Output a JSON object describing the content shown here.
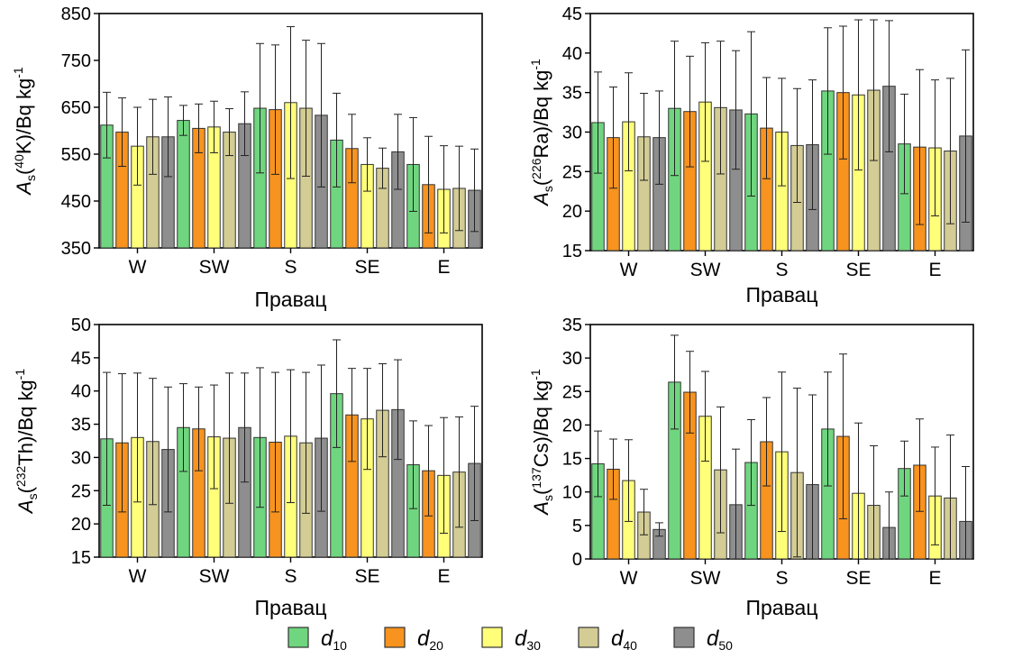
{
  "legend": {
    "items": [
      {
        "symbol": "d",
        "sub": "10",
        "color": "#6fd67f"
      },
      {
        "symbol": "d",
        "sub": "20",
        "color": "#f7931e"
      },
      {
        "symbol": "d",
        "sub": "30",
        "color": "#ffff7a"
      },
      {
        "symbol": "d",
        "sub": "40",
        "color": "#d3cc94"
      },
      {
        "symbol": "d",
        "sub": "50",
        "color": "#8e8e8e"
      }
    ]
  },
  "chart_data": [
    {
      "type": "bar",
      "ylabel": {
        "pre": "A",
        "sub": "s",
        "mid": "(",
        "sup": "40",
        "post": "K)/Bq kg",
        "exp": "-1"
      },
      "xlabel": "Правац",
      "categories": [
        "W",
        "SW",
        "S",
        "SE",
        "E"
      ],
      "ylim": [
        350,
        850
      ],
      "yticks": [
        350,
        450,
        550,
        650,
        750,
        850
      ],
      "series": [
        {
          "name": "d10",
          "values": [
            612,
            622,
            648,
            580,
            528
          ],
          "errors": [
            70,
            32,
            138,
            100,
            100
          ]
        },
        {
          "name": "d20",
          "values": [
            597,
            605,
            645,
            562,
            485
          ],
          "errors": [
            73,
            52,
            138,
            73,
            103
          ]
        },
        {
          "name": "d30",
          "values": [
            567,
            608,
            660,
            528,
            475
          ],
          "errors": [
            83,
            55,
            162,
            57,
            93
          ]
        },
        {
          "name": "d40",
          "values": [
            587,
            597,
            648,
            520,
            477
          ],
          "errors": [
            80,
            50,
            145,
            43,
            90
          ]
        },
        {
          "name": "d50",
          "values": [
            587,
            615,
            633,
            555,
            473
          ],
          "errors": [
            85,
            68,
            153,
            80,
            88
          ]
        }
      ]
    },
    {
      "type": "bar",
      "ylabel": {
        "pre": "A",
        "sub": "s",
        "mid": "(",
        "sup": "226",
        "post": "Ra)/Bq kg",
        "exp": "-1"
      },
      "xlabel": "Правац",
      "categories": [
        "W",
        "SW",
        "S",
        "SE",
        "E"
      ],
      "ylim": [
        15,
        45
      ],
      "yticks": [
        15,
        20,
        25,
        30,
        35,
        40,
        45
      ],
      "series": [
        {
          "name": "d10",
          "values": [
            31.2,
            33.0,
            32.3,
            35.2,
            28.5
          ],
          "errors": [
            6.4,
            8.5,
            10.4,
            8.0,
            6.3
          ]
        },
        {
          "name": "d20",
          "values": [
            29.3,
            32.6,
            30.5,
            35.0,
            28.1
          ],
          "errors": [
            6.4,
            7.0,
            6.4,
            8.4,
            9.8
          ]
        },
        {
          "name": "d30",
          "values": [
            31.3,
            33.8,
            30.0,
            34.7,
            28.0
          ],
          "errors": [
            6.2,
            7.5,
            6.8,
            9.5,
            8.6
          ]
        },
        {
          "name": "d40",
          "values": [
            29.4,
            33.1,
            28.3,
            35.3,
            27.6
          ],
          "errors": [
            5.5,
            8.4,
            7.2,
            8.9,
            9.2
          ]
        },
        {
          "name": "d50",
          "values": [
            29.3,
            32.8,
            28.4,
            35.8,
            29.5
          ],
          "errors": [
            5.9,
            7.5,
            8.2,
            8.3,
            10.9
          ]
        }
      ]
    },
    {
      "type": "bar",
      "ylabel": {
        "pre": "A",
        "sub": "s",
        "mid": "(",
        "sup": "232",
        "post": "Th)/Bq kg",
        "exp": "-1"
      },
      "xlabel": "Правац",
      "categories": [
        "W",
        "SW",
        "S",
        "SE",
        "E"
      ],
      "ylim": [
        15,
        50
      ],
      "yticks": [
        15,
        20,
        25,
        30,
        35,
        40,
        45,
        50
      ],
      "series": [
        {
          "name": "d10",
          "values": [
            32.8,
            34.5,
            33.0,
            39.6,
            28.9
          ],
          "errors": [
            10.0,
            6.6,
            10.5,
            8.1,
            6.6
          ]
        },
        {
          "name": "d20",
          "values": [
            32.2,
            34.3,
            32.3,
            36.4,
            28.0
          ],
          "errors": [
            10.4,
            6.3,
            10.5,
            7.0,
            6.8
          ]
        },
        {
          "name": "d30",
          "values": [
            33.0,
            33.1,
            33.2,
            35.8,
            27.3
          ],
          "errors": [
            9.7,
            7.8,
            10.0,
            7.6,
            8.7
          ]
        },
        {
          "name": "d40",
          "values": [
            32.4,
            32.9,
            32.2,
            37.1,
            27.8
          ],
          "errors": [
            9.5,
            9.8,
            10.6,
            7.0,
            8.3
          ]
        },
        {
          "name": "d50",
          "values": [
            31.2,
            34.5,
            32.9,
            37.2,
            29.1
          ],
          "errors": [
            9.4,
            8.2,
            11.0,
            7.5,
            8.6
          ]
        }
      ]
    },
    {
      "type": "bar",
      "ylabel": {
        "pre": "A",
        "sub": "s",
        "mid": "(",
        "sup": "137",
        "post": "Cs)/Bq kg",
        "exp": "-1"
      },
      "xlabel": "Правац",
      "categories": [
        "W",
        "SW",
        "S",
        "SE",
        "E"
      ],
      "ylim": [
        0,
        35
      ],
      "yticks": [
        0,
        5,
        10,
        15,
        20,
        25,
        30,
        35
      ],
      "series": [
        {
          "name": "d10",
          "values": [
            14.2,
            26.4,
            14.4,
            19.4,
            13.5
          ],
          "errors": [
            4.9,
            7.0,
            6.4,
            8.5,
            4.1
          ]
        },
        {
          "name": "d20",
          "values": [
            13.4,
            24.9,
            17.5,
            18.3,
            14.0
          ],
          "errors": [
            4.5,
            6.1,
            6.6,
            12.3,
            6.9
          ]
        },
        {
          "name": "d30",
          "values": [
            11.7,
            21.3,
            16.0,
            9.8,
            9.4
          ],
          "errors": [
            6.1,
            6.7,
            11.9,
            10.5,
            7.3
          ]
        },
        {
          "name": "d40",
          "values": [
            7.0,
            13.3,
            12.9,
            8.0,
            9.1
          ],
          "errors": [
            3.4,
            9.4,
            12.6,
            8.9,
            9.4
          ]
        },
        {
          "name": "d50",
          "values": [
            4.4,
            8.1,
            11.1,
            4.7,
            5.6
          ],
          "errors": [
            1.0,
            8.3,
            13.4,
            5.3,
            8.2
          ]
        }
      ]
    }
  ]
}
